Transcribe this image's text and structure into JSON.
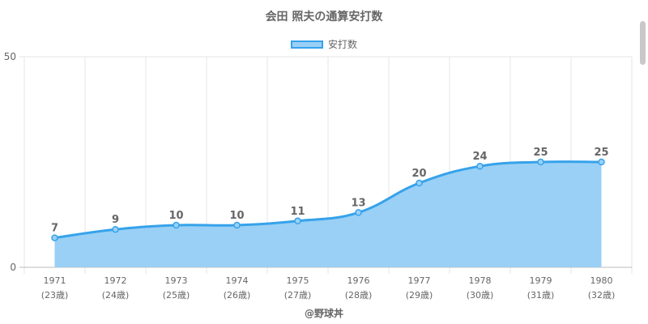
{
  "chart_data": {
    "type": "area",
    "title": "会田 照夫の通算安打数",
    "categories": [
      "1971",
      "1972",
      "1973",
      "1974",
      "1975",
      "1976",
      "1977",
      "1978",
      "1979",
      "1980"
    ],
    "ages": [
      "(23歳)",
      "(24歳)",
      "(25歳)",
      "(26歳)",
      "(27歳)",
      "(28歳)",
      "(29歳)",
      "(30歳)",
      "(31歳)",
      "(32歳)"
    ],
    "series": [
      {
        "name": "安打数",
        "values": [
          7,
          9,
          10,
          10,
          11,
          13,
          20,
          24,
          25,
          25
        ]
      }
    ],
    "ylim": [
      0,
      50
    ],
    "yticks": [
      "0",
      "50"
    ],
    "grid": true,
    "legend_position": "top",
    "colors": {
      "line": "#36a2eb",
      "fill": "#9ad0f5"
    }
  },
  "credit": "@野球丼"
}
